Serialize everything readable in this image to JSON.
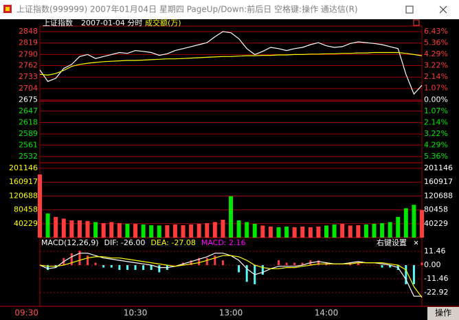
{
  "window": {
    "title": "上证指数(999999) 2007年01月04日 星期四 PageUp/Down:前后日 空格键:操作 通达信(R)"
  },
  "chart_data": [
    {
      "type": "line",
      "title": "上证指数",
      "subtitle": "2007-01-04 分时",
      "annotation": "成交额(万)",
      "categories": [
        "09:30",
        null,
        null,
        null,
        null,
        null,
        null,
        null,
        null,
        null,
        null,
        null,
        "10:30",
        null,
        null,
        null,
        null,
        null,
        null,
        null,
        null,
        null,
        null,
        null,
        "13:00",
        null,
        null,
        null,
        null,
        null,
        null,
        null,
        null,
        null,
        null,
        null,
        "14:00",
        null,
        null,
        null,
        null,
        null,
        null,
        null,
        null,
        null,
        null,
        null,
        null
      ],
      "series": [
        {
          "color": "#ffffff",
          "values": [
            2751,
            2722,
            2730,
            2755,
            2765,
            2785,
            2790,
            2780,
            2785,
            2790,
            2795,
            2793,
            2800,
            2798,
            2795,
            2788,
            2792,
            2800,
            2805,
            2810,
            2815,
            2820,
            2835,
            2848,
            2845,
            2830,
            2805,
            2790,
            2798,
            2808,
            2805,
            2800,
            2805,
            2808,
            2815,
            2820,
            2812,
            2808,
            2810,
            2818,
            2822,
            2820,
            2818,
            2815,
            2810,
            2805,
            2740,
            2690,
            2712
          ]
        },
        {
          "color": "#ffff00",
          "values": [
            2740,
            2738,
            2742,
            2750,
            2760,
            2765,
            2768,
            2770,
            2772,
            2773,
            2774,
            2775,
            2775,
            2776,
            2777,
            2778,
            2779,
            2779,
            2780,
            2781,
            2782,
            2783,
            2784,
            2785,
            2785,
            2786,
            2787,
            2787,
            2788,
            2788,
            2789,
            2789,
            2790,
            2790,
            2791,
            2791,
            2792,
            2792,
            2793,
            2793,
            2794,
            2794,
            2795,
            2795,
            2795,
            2795,
            2793,
            2790,
            2787
          ]
        }
      ],
      "ylim": [
        2532,
        2848
      ],
      "yticks": [
        2848,
        2819,
        2790,
        2762,
        2733,
        2704,
        2675,
        2647,
        2618,
        2589,
        2561,
        2532
      ],
      "y2lim": [
        -5.36,
        6.43
      ],
      "y2ticks": [
        {
          "value": 6.43,
          "label": "6.43%"
        },
        {
          "value": 5.36,
          "label": "5.36%"
        },
        {
          "value": 4.29,
          "label": "4.29%"
        },
        {
          "value": 3.22,
          "label": "3.22%"
        },
        {
          "value": 2.14,
          "label": "2.14%"
        },
        {
          "value": 1.07,
          "label": "1.07%"
        },
        {
          "value": 0,
          "label": "0.00%"
        },
        {
          "value": -1.07,
          "label": "1.07%"
        },
        {
          "value": -2.14,
          "label": "2.14%"
        },
        {
          "value": -3.22,
          "label": "3.22%"
        },
        {
          "value": -4.29,
          "label": "4.29%"
        },
        {
          "value": -5.36,
          "label": "5.36%"
        }
      ],
      "grid": true,
      "up_color": "#ff3c3c",
      "down_color": "#00e600"
    },
    {
      "type": "bar",
      "values": [
        183000,
        70000,
        60000,
        55000,
        50000,
        50000,
        48000,
        45000,
        42000,
        45000,
        42000,
        40000,
        40000,
        38000,
        36000,
        35000,
        36000,
        38000,
        36000,
        38000,
        40000,
        42000,
        45000,
        52000,
        120000,
        50000,
        45000,
        40000,
        35000,
        32000,
        30000,
        32000,
        30000,
        32000,
        30000,
        32000,
        35000,
        38000,
        40000,
        35000,
        36000,
        38000,
        40000,
        42000,
        45000,
        60000,
        85000,
        95000,
        80000
      ],
      "ylim": [
        0,
        201146
      ],
      "yticks": [
        40229,
        80458,
        120688,
        160917,
        201146
      ],
      "grid": true,
      "up_color": "#ff3c3c",
      "down_color": "#00e600"
    },
    {
      "type": "macd",
      "title": "MACD(12,26,9)",
      "settings_label": "右键设置",
      "series": [
        {
          "name": "DIF: -26.00",
          "color": "#ffffff",
          "values": [
            0,
            -3,
            -2,
            3,
            7,
            10,
            10,
            8,
            6,
            5,
            4,
            3,
            2,
            1,
            0,
            -2,
            -2,
            -1,
            1,
            3,
            5,
            7,
            10,
            10,
            8,
            4,
            -3,
            -8,
            -6,
            -3,
            -1,
            -1,
            -1,
            0,
            2,
            3,
            2,
            1,
            1,
            2,
            3,
            2,
            2,
            1,
            0,
            -2,
            -12,
            -26,
            -26
          ]
        },
        {
          "name": "DEA: -27.08",
          "color": "#ffff00",
          "values": [
            0,
            -1,
            -1,
            0,
            2,
            4,
            6,
            7,
            7,
            6,
            6,
            5,
            4,
            3,
            2,
            1,
            0,
            -1,
            0,
            1,
            2,
            4,
            6,
            8,
            8,
            7,
            4,
            0,
            -2,
            -3,
            -3,
            -2,
            -2,
            -1,
            0,
            1,
            1,
            1,
            1,
            1,
            2,
            2,
            2,
            2,
            1,
            0,
            -4,
            -18,
            -27.08
          ]
        },
        {
          "name": "MACD: 2.16",
          "color": "#ff00ff",
          "up_color": "#ff3c3c",
          "down_color": "#54fcfc",
          "values": [
            0,
            -4,
            -2,
            6,
            10,
            12,
            8,
            2,
            -2,
            -2,
            -4,
            -4,
            -4,
            -4,
            -4,
            -6,
            -4,
            0,
            2,
            4,
            6,
            6,
            8,
            4,
            0,
            -6,
            -14,
            -16,
            -8,
            0,
            4,
            2,
            2,
            2,
            4,
            4,
            2,
            0,
            0,
            2,
            2,
            0,
            0,
            -2,
            -2,
            -4,
            -16,
            -16,
            2.16
          ]
        }
      ],
      "ylim": [
        -31,
        15
      ],
      "yticks": [
        11.46,
        {
          "value": 0,
          "label": "0.00"
        },
        -11.46,
        -22.92
      ]
    }
  ],
  "footer": {
    "action": "操作"
  }
}
